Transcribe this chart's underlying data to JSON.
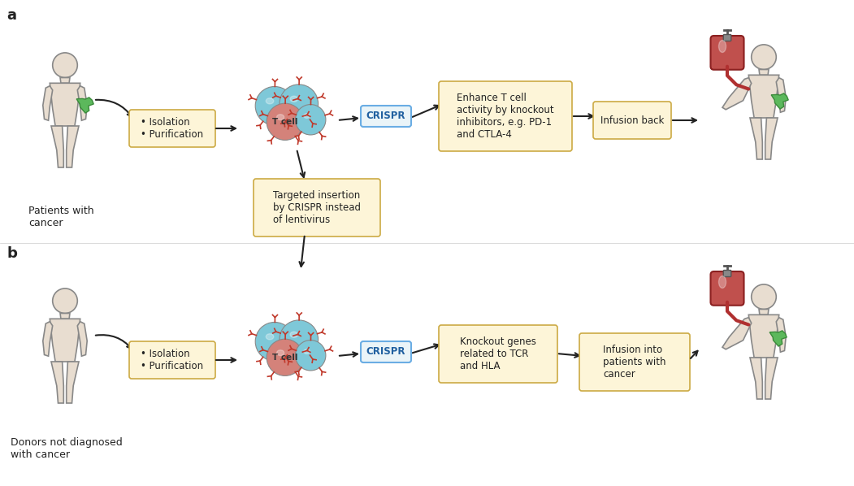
{
  "bg_color": "#ffffff",
  "body_fill": "#e8ddd0",
  "body_edge": "#888888",
  "tumor_color": "#5cb85c",
  "cell_blue": "#7ec8d8",
  "cell_red": "#d4827a",
  "receptor_color_dark": "#c0392b",
  "receptor_color_light": "#e8a09a",
  "box_fill": "#fdf5d8",
  "box_edge": "#ccaa44",
  "crispr_box_fill": "#eaf4f8",
  "crispr_box_edge": "#6aade4",
  "arrow_color": "#222222",
  "blood_bag_color": "#c0504d",
  "blood_tube_color": "#b03030",
  "label_a": "a",
  "label_b": "b",
  "text_patients": "Patients with\ncancer",
  "text_donors": "Donors not diagnosed\nwith cancer",
  "text_isolation": "• Isolation\n• Purification",
  "text_crispr": "CRISPR",
  "text_enhance": "Enhance T cell\nactivity by knockout\ninhibitors, e.g. PD-1\nand CTLA-4",
  "text_targeted": "Targeted insertion\nby CRISPR instead\nof lentivirus",
  "text_infusion_back": "Infusion back",
  "text_knockout": "Knockout genes\nrelated to TCR\nand HLA",
  "text_infusion_cancer": "Infusion into\npatients with\ncancer",
  "text_tcell": "T cell"
}
